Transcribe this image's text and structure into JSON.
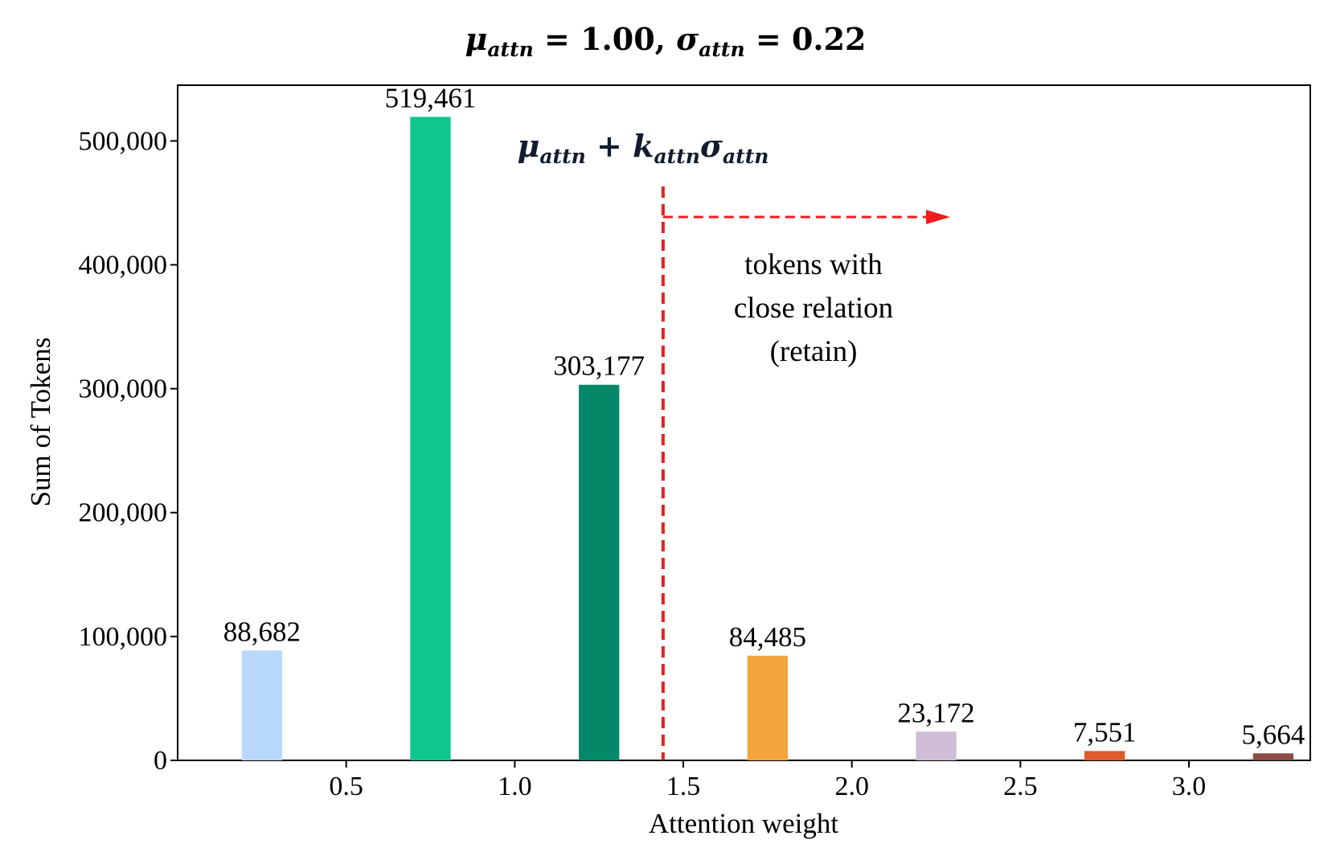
{
  "chart_data": {
    "type": "bar",
    "title": "μattn = 1.00, σattn = 0.22",
    "title_parts": {
      "mu": "μ",
      "attn": "attn",
      "eq1": " = 1.00, ",
      "sigma": "σ",
      "eq2": " = 0.22"
    },
    "xlabel": "Attention weight",
    "ylabel": "Sum of Tokens",
    "x": [
      0.25,
      0.75,
      1.25,
      1.75,
      2.25,
      2.75,
      3.25
    ],
    "values": [
      88682,
      519461,
      303177,
      84485,
      23172,
      7551,
      5664
    ],
    "value_labels": [
      "88,682",
      "519,461",
      "303,177",
      "84,485",
      "23,172",
      "7,551",
      "5,664"
    ],
    "bar_colors": [
      "#b8d9fb",
      "#10c68f",
      "#048867",
      "#f2a53c",
      "#cfbcd6",
      "#dd5b2b",
      "#8b4c44"
    ],
    "xlim": [
      0.0,
      3.36
    ],
    "ylim": [
      0,
      545000
    ],
    "xticks": [
      0.5,
      1.0,
      1.5,
      2.0,
      2.5,
      3.0
    ],
    "xtick_labels": [
      "0.5",
      "1.0",
      "1.5",
      "2.0",
      "2.5",
      "3.0"
    ],
    "yticks": [
      0,
      100000,
      200000,
      300000,
      400000,
      500000
    ],
    "ytick_labels": [
      "0",
      "100,000",
      "200,000",
      "300,000",
      "400,000",
      "500,000"
    ],
    "threshold": {
      "x": 1.44,
      "color": "#ee1c1c",
      "formula": "μattn + kattnσattn",
      "formula_parts": {
        "mu": "μ",
        "attn": "attn",
        "plus": " + ",
        "k": "k",
        "sigma": "σ"
      },
      "annotation_lines": [
        "tokens with",
        "close relation",
        "(retain)"
      ]
    },
    "grid": false,
    "legend": "none"
  }
}
